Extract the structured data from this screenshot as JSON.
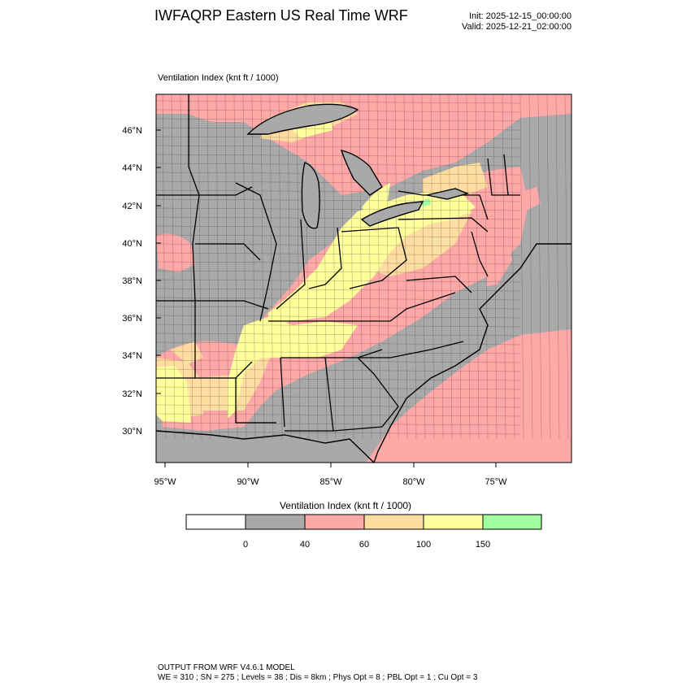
{
  "header": {
    "title": "IWFAQRP Eastern US Real Time WRF",
    "init": "Init: 2025-12-15_00:00:00",
    "valid": "Valid: 2025-12-21_02:00:00"
  },
  "map": {
    "field_label": "Ventilation Index   (knt ft / 1000)",
    "lat_labels": [
      "46°N",
      "44°N",
      "42°N",
      "40°N",
      "38°N",
      "36°N",
      "34°N",
      "32°N",
      "30°N"
    ],
    "lon_labels": [
      "95°W",
      "90°W",
      "85°W",
      "80°W",
      "75°W"
    ],
    "background_color": "#a9a9a9"
  },
  "colorbar": {
    "title": "Ventilation Index  (knt ft / 1000)",
    "bins": [
      {
        "color": "#ffffff",
        "range": "below 0"
      },
      {
        "color": "#a9a9a9",
        "range": "0-40"
      },
      {
        "color": "#ffa8a8",
        "range": "40-60"
      },
      {
        "color": "#ffdca0",
        "range": "60-100"
      },
      {
        "color": "#ffff9c",
        "range": "100-150"
      },
      {
        "color": "#a0ffa0",
        "range": "above 150"
      }
    ],
    "tick_labels": [
      "0",
      "40",
      "60",
      "100",
      "150"
    ]
  },
  "footer": {
    "line1": "OUTPUT FROM WRF V4.6.1 MODEL",
    "line2": "WE = 310 ; SN = 275 ; Levels = 38 ; Dis = 8km ; Phys Opt = 8 ; PBL Opt = 1 ; Cu Opt = 3"
  }
}
